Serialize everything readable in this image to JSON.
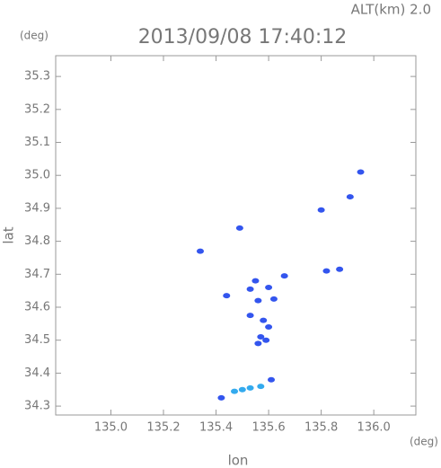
{
  "chart_data": {
    "type": "scatter",
    "title": "2013/09/08 17:40:12",
    "subtitle": "ALT(km) 2.0",
    "y_unit": "(deg)",
    "x_unit": "(deg)",
    "x_label": "lon",
    "y_label": "lat",
    "xlim": [
      134.79,
      136.16
    ],
    "ylim": [
      34.273,
      35.363
    ],
    "xticks": [
      {
        "value": 135,
        "label": "135.0"
      },
      135.2,
      135.4,
      135.6,
      135.8,
      {
        "value": 136,
        "label": "136.0"
      }
    ],
    "yticks": [
      34.3,
      34.4,
      34.5,
      34.6,
      34.7,
      34.8,
      34.9,
      {
        "value": 35,
        "label": "35.0"
      },
      35.1,
      35.2,
      35.3
    ],
    "series": [
      {
        "color": "#3355ee",
        "x": [
          135.95,
          135.91,
          135.8,
          135.82,
          135.87,
          135.66,
          135.55,
          135.44,
          135.53,
          135.6,
          135.56,
          135.62,
          135.53,
          135.58,
          135.6,
          135.57,
          135.59,
          135.56,
          135.61,
          135.42,
          135.34,
          135.49
        ],
        "values": [
          35.01,
          34.935,
          34.895,
          34.71,
          34.715,
          34.695,
          34.68,
          34.635,
          34.655,
          34.66,
          34.62,
          34.625,
          34.575,
          34.56,
          34.54,
          34.51,
          34.5,
          34.49,
          34.38,
          34.325,
          34.77,
          34.84
        ]
      },
      {
        "color": "#33aaee",
        "x": [
          135.47,
          135.5,
          135.53,
          135.57
        ],
        "values": [
          34.345,
          34.35,
          34.355,
          34.36
        ]
      }
    ]
  }
}
